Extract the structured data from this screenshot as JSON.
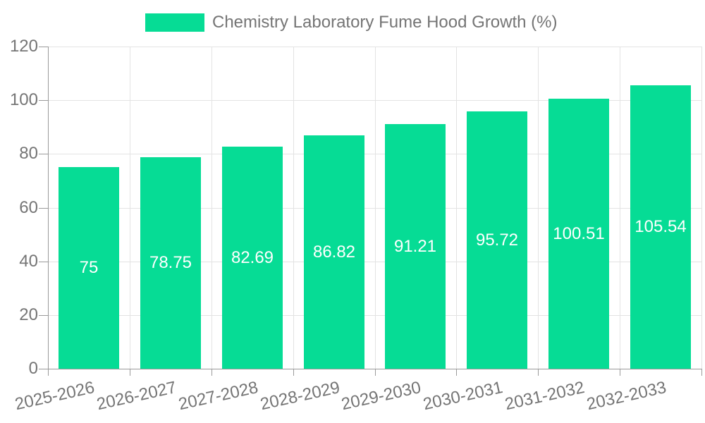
{
  "chart_data": {
    "type": "bar",
    "title": "Chemistry Laboratory Fume Hood Growth (%)",
    "categories": [
      "2025-2026",
      "2026-2027",
      "2027-2028",
      "2028-2029",
      "2029-2030",
      "2030-2031",
      "2031-2032",
      "2032-2033"
    ],
    "values": [
      75,
      78.75,
      82.69,
      86.82,
      91.21,
      95.72,
      100.51,
      105.54
    ],
    "value_labels": [
      "75",
      "78.75",
      "82.69",
      "86.82",
      "91.21",
      "95.72",
      "100.51",
      "105.54"
    ],
    "xlabel": "",
    "ylabel": "",
    "ylim": [
      0,
      120
    ],
    "yticks": [
      0,
      20,
      40,
      60,
      80,
      100,
      120
    ],
    "grid": true,
    "legend_position": "top-center",
    "legend_entries": [
      "Chemistry Laboratory Fume Hood Growth (%)"
    ],
    "colors": {
      "bar": "#06dc95",
      "bar_label": "#ffffff",
      "axis_text": "#757575",
      "axis_line": "#9a9a9a",
      "gridline": "#e3e3e3",
      "background": "#ffffff"
    }
  }
}
